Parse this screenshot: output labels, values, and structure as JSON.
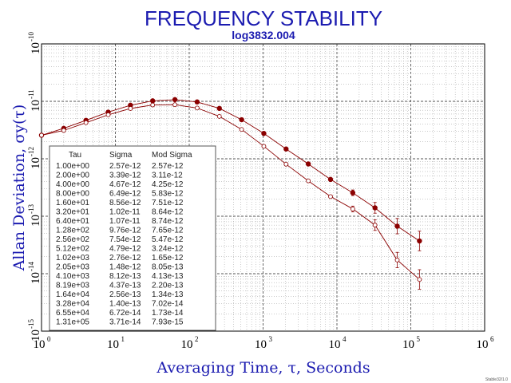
{
  "chart_data": {
    "type": "line",
    "title": "FREQUENCY STABILITY",
    "subtitle": "log3832.004",
    "xlabel": "Averaging Time, τ, Seconds",
    "ylabel": "Allan Deviation, σy(τ)",
    "x_scale": "log",
    "y_scale": "log",
    "xlim": [
      1,
      1000000
    ],
    "ylim": [
      1e-15,
      1e-10
    ],
    "grid": true,
    "x_ticks": [
      {
        "base": "10",
        "exp": "0"
      },
      {
        "base": "10",
        "exp": "1"
      },
      {
        "base": "10",
        "exp": "2"
      },
      {
        "base": "10",
        "exp": "3"
      },
      {
        "base": "10",
        "exp": "4"
      },
      {
        "base": "10",
        "exp": "5"
      },
      {
        "base": "10",
        "exp": "6"
      }
    ],
    "y_ticks": [
      {
        "base": "10",
        "exp": "-10"
      },
      {
        "base": "10",
        "exp": "-11"
      },
      {
        "base": "10",
        "exp": "-12"
      },
      {
        "base": "10",
        "exp": "-13"
      },
      {
        "base": "10",
        "exp": "-14"
      },
      {
        "base": "10",
        "exp": "-15"
      }
    ],
    "x": [
      1,
      2,
      4,
      8,
      16,
      32,
      64,
      128,
      256,
      512,
      1024,
      2048,
      4096,
      8192,
      16384,
      32768,
      65536,
      131072
    ],
    "series": [
      {
        "name": "Sigma",
        "marker": "filled-circle",
        "color": "#8b0000",
        "values": [
          2.57e-12,
          3.39e-12,
          4.67e-12,
          6.49e-12,
          8.56e-12,
          1.02e-11,
          1.07e-11,
          9.76e-12,
          7.54e-12,
          4.79e-12,
          2.76e-12,
          1.48e-12,
          8.12e-13,
          4.37e-13,
          2.56e-13,
          1.4e-13,
          6.72e-14,
          3.71e-14
        ]
      },
      {
        "name": "Mod Sigma",
        "marker": "open-circle",
        "color": "#8b0000",
        "values": [
          2.57e-12,
          3.11e-12,
          4.25e-12,
          5.83e-12,
          7.51e-12,
          8.64e-12,
          8.74e-12,
          7.65e-12,
          5.47e-12,
          3.24e-12,
          1.65e-12,
          8.05e-13,
          4.13e-13,
          2.2e-13,
          1.34e-13,
          7.02e-14,
          1.73e-14,
          7.93e-15
        ]
      }
    ],
    "table": {
      "headers": [
        "Tau",
        "Sigma",
        "Mod Sigma"
      ],
      "rows": [
        [
          "1.00e+00",
          "2.57e-12",
          "2.57e-12"
        ],
        [
          "2.00e+00",
          "3.39e-12",
          "3.11e-12"
        ],
        [
          "4.00e+00",
          "4.67e-12",
          "4.25e-12"
        ],
        [
          "8.00e+00",
          "6.49e-12",
          "5.83e-12"
        ],
        [
          "1.60e+01",
          "8.56e-12",
          "7.51e-12"
        ],
        [
          "3.20e+01",
          "1.02e-11",
          "8.64e-12"
        ],
        [
          "6.40e+01",
          "1.07e-11",
          "8.74e-12"
        ],
        [
          "1.28e+02",
          "9.76e-12",
          "7.65e-12"
        ],
        [
          "2.56e+02",
          "7.54e-12",
          "5.47e-12"
        ],
        [
          "5.12e+02",
          "4.79e-12",
          "3.24e-12"
        ],
        [
          "1.02e+03",
          "2.76e-12",
          "1.65e-12"
        ],
        [
          "2.05e+03",
          "1.48e-12",
          "8.05e-13"
        ],
        [
          "4.10e+03",
          "8.12e-13",
          "4.13e-13"
        ],
        [
          "8.19e+03",
          "4.37e-13",
          "2.20e-13"
        ],
        [
          "1.64e+04",
          "2.56e-13",
          "1.34e-13"
        ],
        [
          "3.28e+04",
          "1.40e-13",
          "7.02e-14"
        ],
        [
          "6.55e+04",
          "6.72e-14",
          "1.73e-14"
        ],
        [
          "1.31e+05",
          "3.71e-14",
          "7.93e-15"
        ]
      ]
    },
    "footer": "Stable32/1.0"
  }
}
